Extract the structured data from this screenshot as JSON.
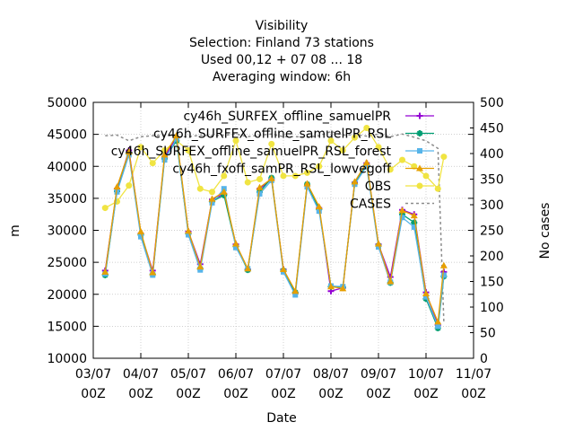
{
  "chart_data": {
    "type": "line",
    "title_lines": [
      "Visibility",
      "Selection: Finland      73 stations",
      "Used  00,12  + 07 08 ... 18",
      "Averaging window:  6h"
    ],
    "xlabel": "Date",
    "ylabel": "m",
    "y2label": "No cases",
    "xlim": [
      0,
      192
    ],
    "ylim": [
      10000,
      50000
    ],
    "y2lim": [
      0,
      500
    ],
    "x_ticks": [
      {
        "value": 0,
        "line1": "03/07",
        "line2": "00Z"
      },
      {
        "value": 24,
        "line1": "04/07",
        "line2": "00Z"
      },
      {
        "value": 48,
        "line1": "05/07",
        "line2": "00Z"
      },
      {
        "value": 72,
        "line1": "06/07",
        "line2": "00Z"
      },
      {
        "value": 96,
        "line1": "07/07",
        "line2": "00Z"
      },
      {
        "value": 120,
        "line1": "08/07",
        "line2": "00Z"
      },
      {
        "value": 144,
        "line1": "09/07",
        "line2": "00Z"
      },
      {
        "value": 168,
        "line1": "10/07",
        "line2": "00Z"
      },
      {
        "value": 192,
        "line1": "11/07",
        "line2": "00Z"
      }
    ],
    "y_ticks": [
      10000,
      15000,
      20000,
      25000,
      30000,
      35000,
      40000,
      45000,
      50000
    ],
    "y2_ticks": [
      0,
      50,
      100,
      150,
      200,
      250,
      300,
      350,
      400,
      450,
      500
    ],
    "grid": true,
    "legend_position": "top-right",
    "x": [
      6,
      12,
      18,
      24,
      30,
      36,
      42,
      48,
      54,
      60,
      66,
      72,
      78,
      84,
      90,
      96,
      102,
      108,
      114,
      120,
      126,
      132,
      138,
      144,
      150,
      156,
      162,
      168,
      174,
      177
    ],
    "series": [
      {
        "name": "cy46h_SURFEX_offline_samuelPR",
        "color": "#9400d3",
        "marker": "plus",
        "axis": "y",
        "values": [
          23700,
          36500,
          42500,
          29500,
          23700,
          41500,
          44500,
          29800,
          24700,
          34800,
          35700,
          27800,
          23900,
          36500,
          38000,
          23900,
          20200,
          37000,
          33500,
          20500,
          21000,
          37500,
          40500,
          27800,
          22700,
          33200,
          32500,
          20300,
          15200,
          23500
        ]
      },
      {
        "name": "cy46h_SURFEX_offline_samuelPR_RSL",
        "color": "#009e73",
        "marker": "star",
        "axis": "y",
        "values": [
          23000,
          36100,
          42000,
          29300,
          23100,
          41200,
          44000,
          29500,
          24000,
          34500,
          35500,
          27500,
          23800,
          36000,
          38200,
          23700,
          20300,
          37200,
          33300,
          21200,
          21100,
          37300,
          40200,
          27600,
          21800,
          32500,
          31200,
          19300,
          14700,
          22800
        ]
      },
      {
        "name": "cy46h_SURFEX_offline_samuelPR_RSL_forest",
        "color": "#56b4e9",
        "marker": "box",
        "axis": "y",
        "values": [
          23200,
          36000,
          41800,
          29000,
          23000,
          41000,
          44300,
          29300,
          23800,
          34300,
          36500,
          27300,
          24000,
          35700,
          37800,
          23500,
          19900,
          36800,
          33000,
          21300,
          21200,
          37200,
          40000,
          27400,
          21900,
          32000,
          30500,
          19600,
          15000,
          23000
        ]
      },
      {
        "name": "cy46h_fxoff_samPR_RSL_lowvegoff",
        "color": "#e69f00",
        "marker": "triangle",
        "axis": "y",
        "values": [
          23500,
          36800,
          42300,
          29800,
          23400,
          41800,
          44800,
          29900,
          24300,
          34900,
          36000,
          27900,
          24000,
          36700,
          38100,
          23900,
          20500,
          37300,
          33700,
          21200,
          20900,
          37600,
          40600,
          27900,
          22000,
          33100,
          32300,
          20100,
          15700,
          24500
        ]
      },
      {
        "name": "OBS",
        "color": "#f0e442",
        "marker": "circle",
        "axis": "y",
        "values": [
          33500,
          34500,
          37000,
          43000,
          40500,
          42500,
          44000,
          42500,
          36500,
          36000,
          38500,
          44000,
          37500,
          38000,
          43500,
          38500,
          38500,
          39000,
          40000,
          44000,
          42500,
          44500,
          46000,
          43000,
          39500,
          41000,
          40000,
          38500,
          36500,
          41500
        ]
      },
      {
        "name": "CASES",
        "color": "#8c8c8c",
        "marker": "none",
        "dashed": true,
        "axis": "y2",
        "values": [
          435,
          436,
          425,
          433,
          435,
          436,
          433,
          433,
          436,
          435,
          436,
          438,
          433,
          436,
          438,
          433,
          433,
          432,
          435,
          443,
          436,
          437,
          434,
          438,
          433,
          438,
          432,
          425,
          410,
          70
        ]
      }
    ]
  }
}
